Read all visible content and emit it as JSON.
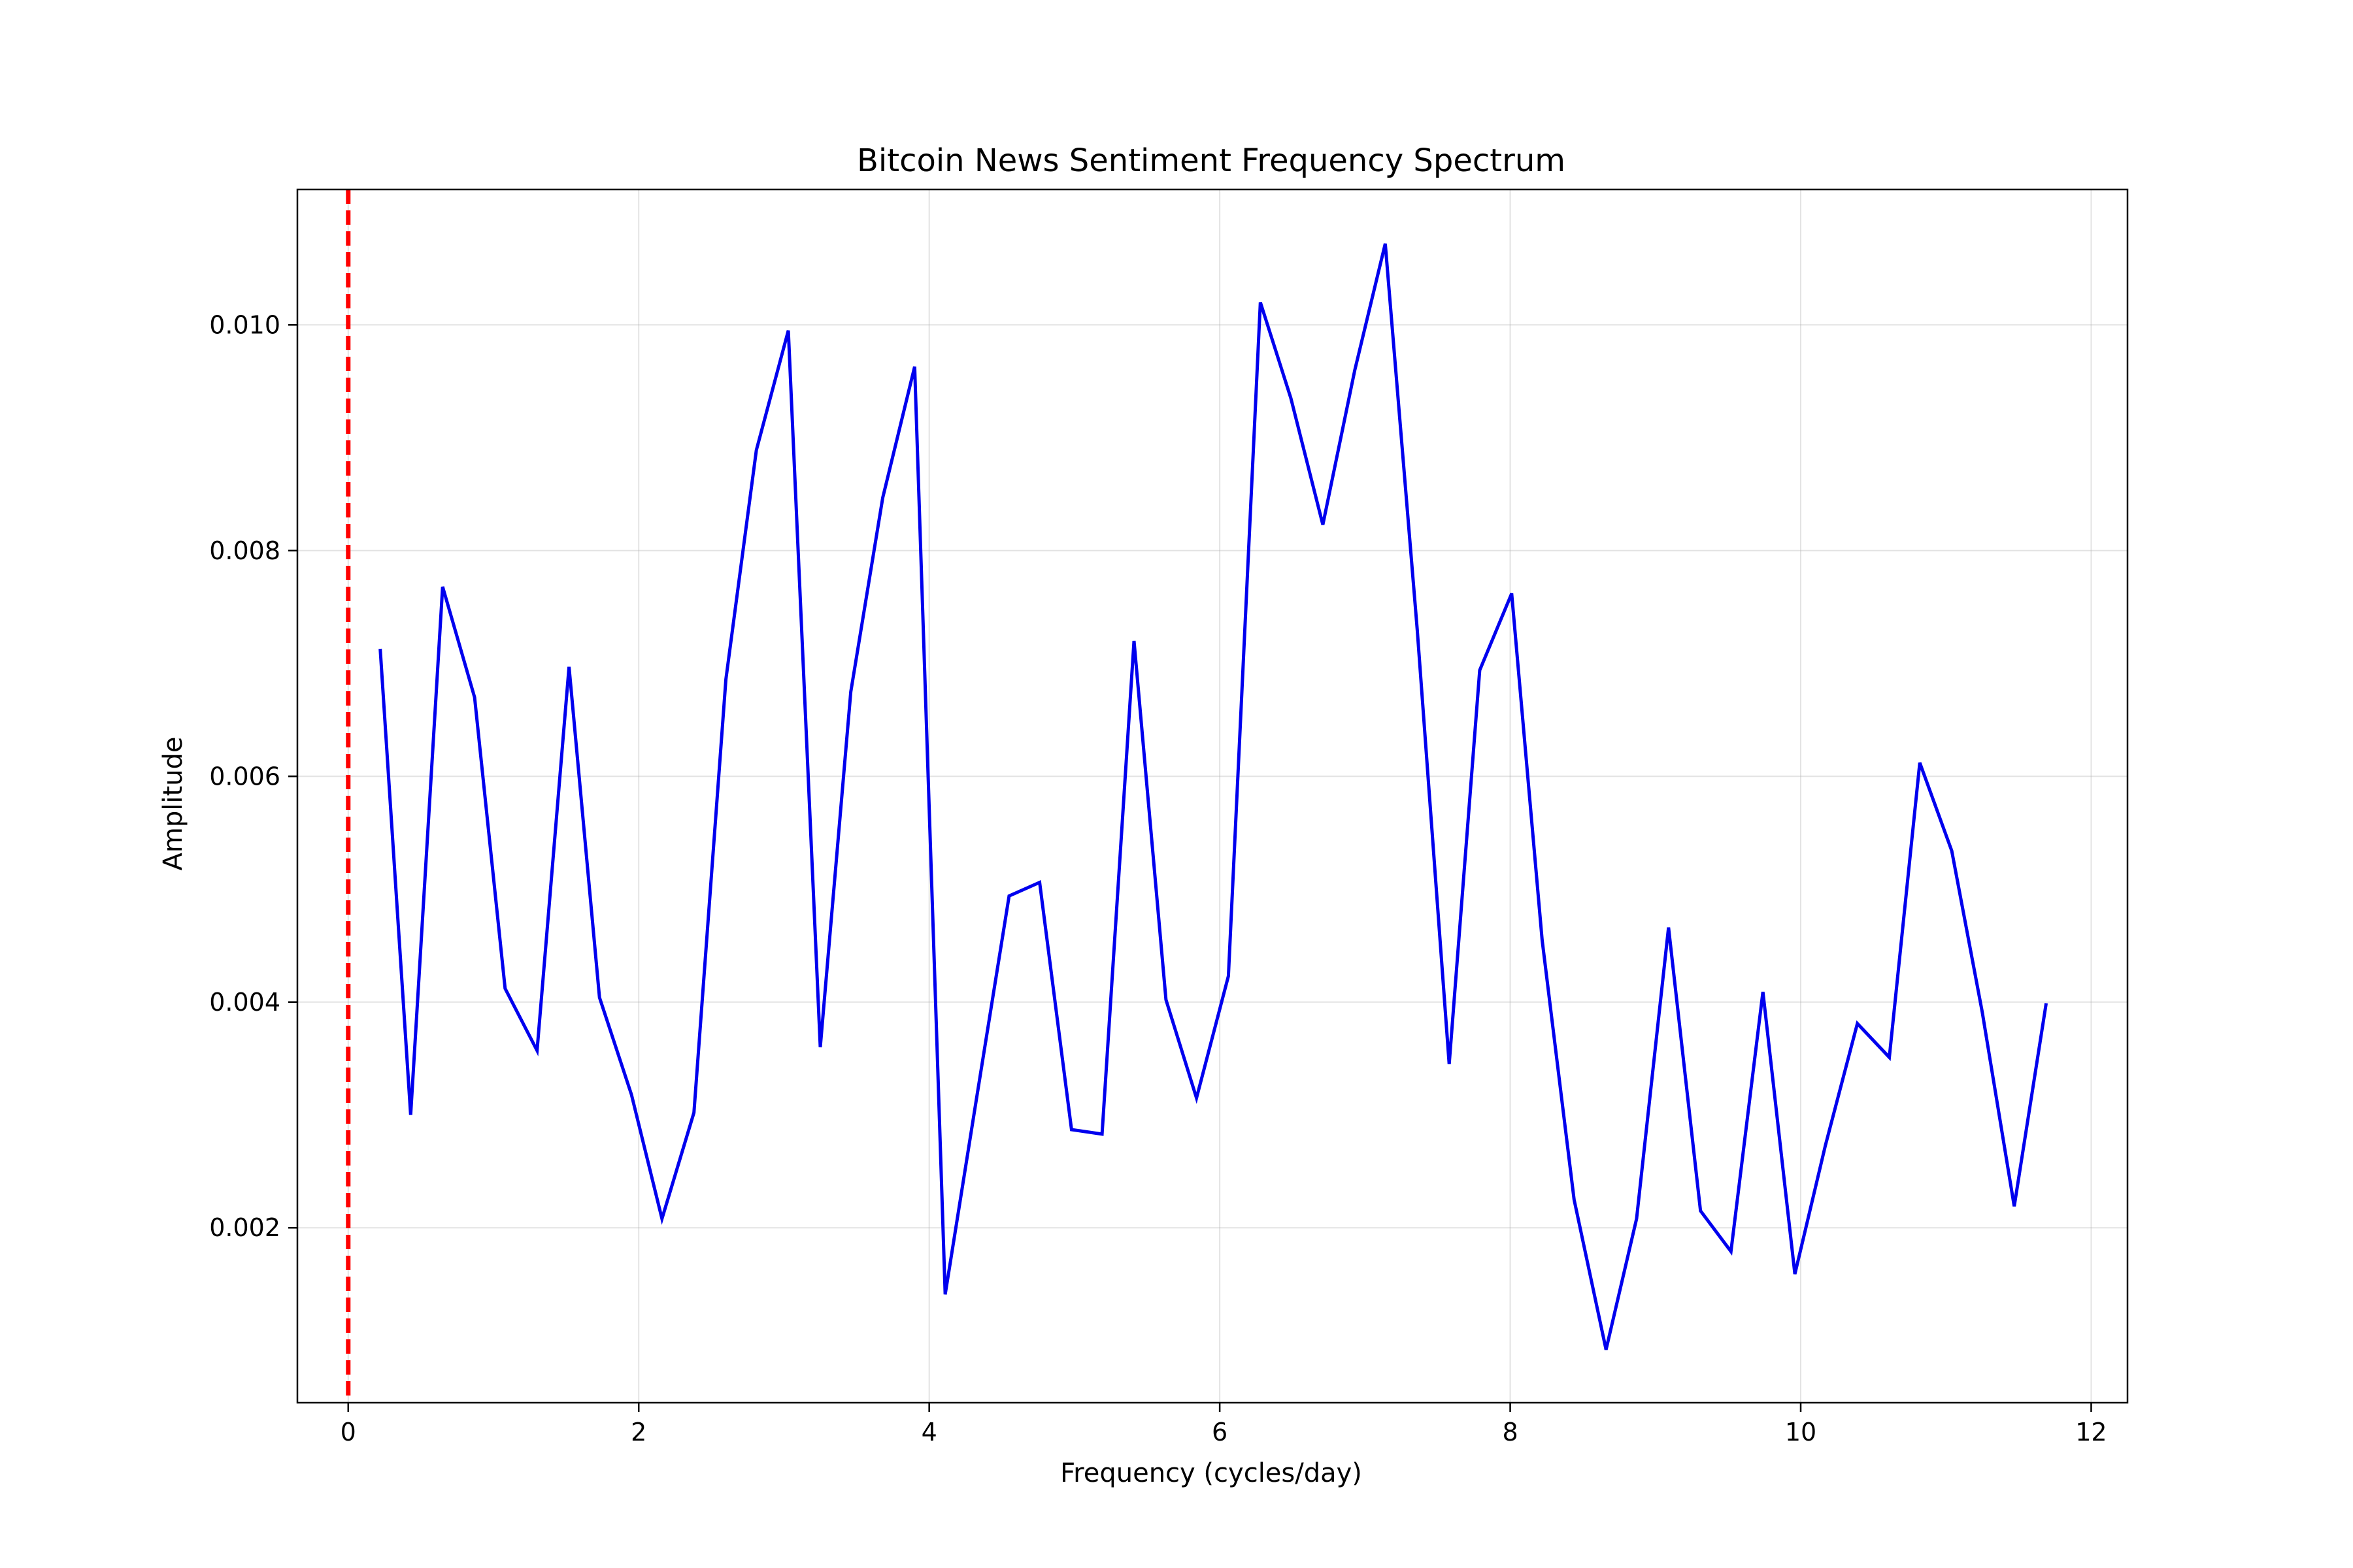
{
  "chart_data": {
    "type": "line",
    "title": "Bitcoin News Sentiment Frequency Spectrum",
    "xlabel": "Frequency (cycles/day)",
    "ylabel": "Amplitude",
    "xlim": [
      -0.35,
      12.25
    ],
    "ylim": [
      0.00045,
      0.0112
    ],
    "x_ticks": [
      0,
      2,
      4,
      6,
      8,
      10,
      12
    ],
    "x_tick_labels": [
      "0",
      "2",
      "4",
      "6",
      "8",
      "10",
      "12"
    ],
    "y_ticks": [
      0.002,
      0.004,
      0.006,
      0.008,
      0.01
    ],
    "y_tick_labels": [
      "0.002",
      "0.004",
      "0.006",
      "0.008",
      "0.010"
    ],
    "grid": true,
    "reference_line": {
      "x": 0,
      "color": "#ff0000",
      "style": "dashed"
    },
    "series": [
      {
        "color": "#0000ee",
        "x": [
          0.22,
          0.43,
          0.65,
          0.87,
          1.08,
          1.3,
          1.52,
          1.73,
          1.95,
          2.16,
          2.38,
          2.6,
          2.81,
          3.03,
          3.25,
          3.46,
          3.68,
          3.9,
          4.11,
          4.33,
          4.55,
          4.76,
          4.98,
          5.19,
          5.41,
          5.63,
          5.84,
          6.06,
          6.28,
          6.49,
          6.71,
          6.93,
          7.14,
          7.36,
          7.58,
          7.79,
          8.01,
          8.22,
          8.44,
          8.66,
          8.87,
          9.09,
          9.31,
          9.52,
          9.74,
          9.96,
          10.17,
          10.39,
          10.61,
          10.82,
          11.04,
          11.25,
          11.47,
          11.69
        ],
        "values": [
          0.00713,
          0.003,
          0.00768,
          0.0067,
          0.00412,
          0.00357,
          0.00697,
          0.00404,
          0.00318,
          0.00208,
          0.00302,
          0.00686,
          0.00889,
          0.00995,
          0.0036,
          0.00675,
          0.00847,
          0.00963,
          0.00141,
          0.00318,
          0.00494,
          0.00506,
          0.00287,
          0.00283,
          0.0072,
          0.00402,
          0.00315,
          0.00423,
          0.0102,
          0.00935,
          0.00823,
          0.0096,
          0.01072,
          0.0073,
          0.00345,
          0.00694,
          0.00762,
          0.00455,
          0.00225,
          0.00092,
          0.00208,
          0.00466,
          0.00215,
          0.00179,
          0.00409,
          0.00159,
          0.00273,
          0.00381,
          0.00351,
          0.00612,
          0.00534,
          0.00391,
          0.00219,
          0.00399
        ]
      }
    ]
  }
}
